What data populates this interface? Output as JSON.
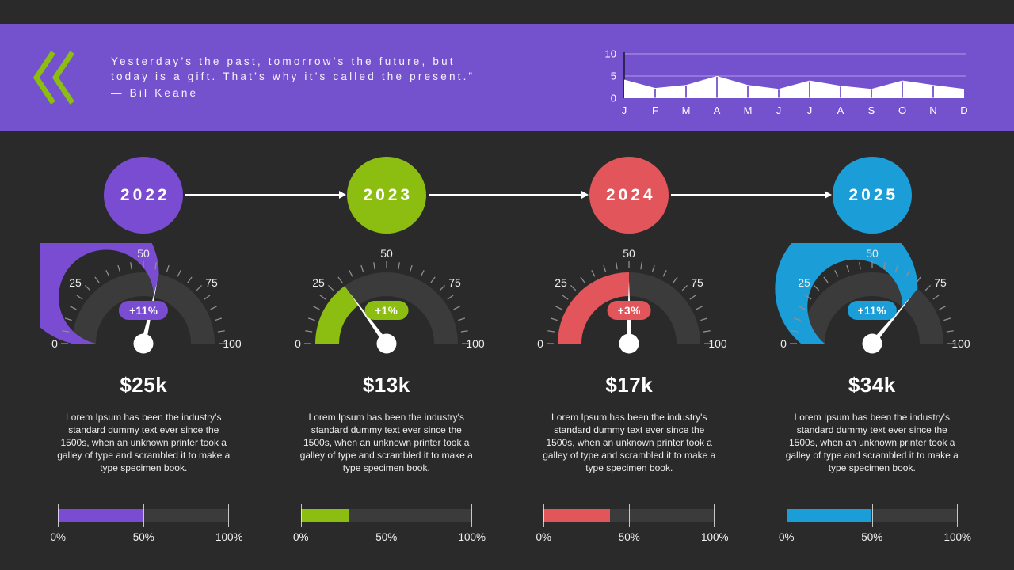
{
  "slide": {
    "background": "#2A2A2A"
  },
  "banner": {
    "background": "#7552CD",
    "chevron_icon_color": "#8CBE11",
    "quote_lines": [
      "Yesterday’s the past, tomorrow’s the future, but",
      "today is a gift. That’s why it’s called the present.”",
      "—  Bil Keane"
    ]
  },
  "lorem_description": "Lorem Ipsum has been the industry's standard dummy text ever since the 1500s, when an unknown printer took a galley of type and scrambled it to make a type specimen book.",
  "columns": [
    {
      "year": "2022",
      "color": "#7A4CD1",
      "amount": "$25k"
    },
    {
      "year": "2023",
      "color": "#8CBE11",
      "amount": "$13k"
    },
    {
      "year": "2024",
      "color": "#E2565B",
      "amount": "$17k"
    },
    {
      "year": "2025",
      "color": "#1B9ED8",
      "amount": "$34k"
    }
  ],
  "chart_data": [
    {
      "id": "monthly-trend-area",
      "type": "area",
      "title": "",
      "x": [
        "J",
        "F",
        "M",
        "A",
        "M",
        "J",
        "J",
        "A",
        "S",
        "O",
        "N",
        "D"
      ],
      "values": [
        4.2,
        2.3,
        3,
        5,
        3,
        2.1,
        4,
        2.8,
        2.1,
        4,
        3,
        2.1
      ],
      "ylim": [
        0,
        10
      ],
      "yticks": [
        0,
        5,
        10
      ],
      "fill_color": "#FFFFFF",
      "grid": true,
      "legend": false
    },
    {
      "id": "year-gauges",
      "type": "gauge",
      "min": 0,
      "max": 100,
      "scale_labels": [
        "0",
        "25",
        "50",
        "75",
        "100"
      ],
      "categories": [
        "2022",
        "2023",
        "2024",
        "2025"
      ],
      "values": [
        57,
        30,
        50,
        72
      ],
      "delta_labels": [
        "+11%",
        "+1%",
        "+3%",
        "+11%"
      ],
      "track_color": "#3B3B3B"
    },
    {
      "id": "year-progress-bars",
      "type": "bar",
      "categories": [
        "2022",
        "2023",
        "2024",
        "2025"
      ],
      "values": [
        50,
        28,
        39,
        49
      ],
      "unit": "%",
      "x_tick_labels": [
        "0%",
        "50%",
        "100%"
      ]
    }
  ]
}
